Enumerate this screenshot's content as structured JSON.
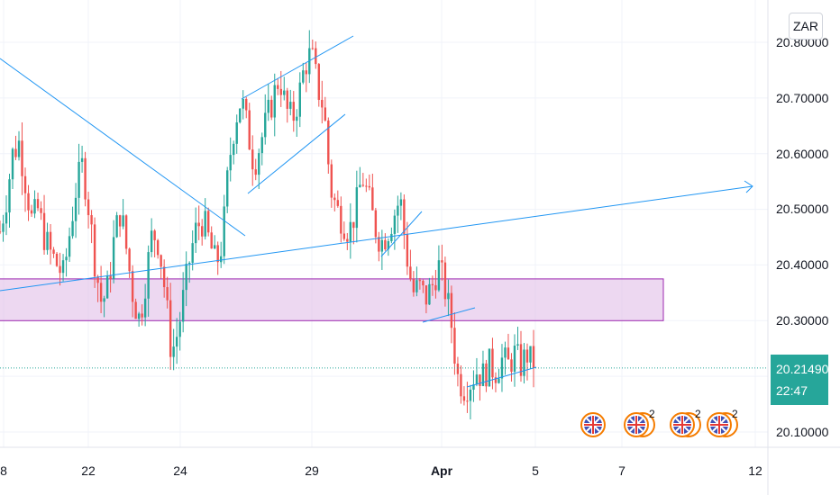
{
  "symbol": {
    "currency": "ZAR"
  },
  "price_axis": {
    "labels": [
      "20.80000",
      "20.70000",
      "20.60000",
      "20.50000",
      "20.40000",
      "20.30000",
      "20.10000"
    ],
    "last_price": "20.21490",
    "countdown": "22:47"
  },
  "time_axis": {
    "labels": [
      "8",
      "22",
      "24",
      "29",
      "Apr",
      "5",
      "7",
      "12"
    ]
  },
  "event_badges": [
    {
      "icon": "uk-flag-icon",
      "count": ""
    },
    {
      "icon": "uk-flag-icon",
      "count": "2"
    },
    {
      "icon": "uk-flag-icon",
      "count": "2"
    },
    {
      "icon": "uk-flag-icon",
      "count": "2"
    }
  ],
  "colors": {
    "up": "#26a69a",
    "down": "#ef5350",
    "trendline": "#2196f3",
    "zone_fill": "#e1bee7",
    "zone_border": "#9c27b0",
    "last_price": "#26a69a"
  },
  "chart_data": {
    "type": "candlestick",
    "title": "",
    "y_unit": "ZAR",
    "ylim": [
      20.06,
      20.88
    ],
    "grid": true,
    "x_ticks": [
      "8",
      "22",
      "24",
      "29",
      "Apr",
      "5",
      "7",
      "12"
    ],
    "close_path": [
      20.46,
      20.52,
      20.6,
      20.62,
      20.55,
      20.48,
      20.5,
      20.45,
      20.42,
      20.4,
      20.38,
      20.46,
      20.54,
      20.58,
      20.5,
      20.4,
      20.33,
      20.36,
      20.45,
      20.5,
      20.42,
      20.34,
      20.3,
      20.38,
      20.46,
      20.44,
      20.35,
      20.24,
      20.28,
      20.35,
      20.42,
      20.47,
      20.48,
      20.44,
      20.4,
      20.44,
      20.58,
      20.66,
      20.7,
      20.64,
      20.58,
      20.62,
      20.66,
      20.7,
      20.74,
      20.68,
      20.66,
      20.7,
      20.76,
      20.78,
      20.72,
      20.68,
      20.54,
      20.5,
      20.48,
      20.46,
      20.5,
      20.56,
      20.52,
      20.47,
      20.44,
      20.46,
      20.49,
      20.52,
      20.42,
      20.35,
      20.36,
      20.34,
      20.36,
      20.4,
      20.36,
      20.3,
      20.2,
      20.18,
      20.19,
      20.21,
      20.2,
      20.22,
      20.21,
      20.23,
      20.22,
      20.24,
      20.22,
      20.24,
      20.2149
    ],
    "last_price": 20.2149,
    "support_zone": {
      "low": 20.3,
      "high": 20.375
    },
    "horizontal_levels": [
      20.2149
    ]
  }
}
